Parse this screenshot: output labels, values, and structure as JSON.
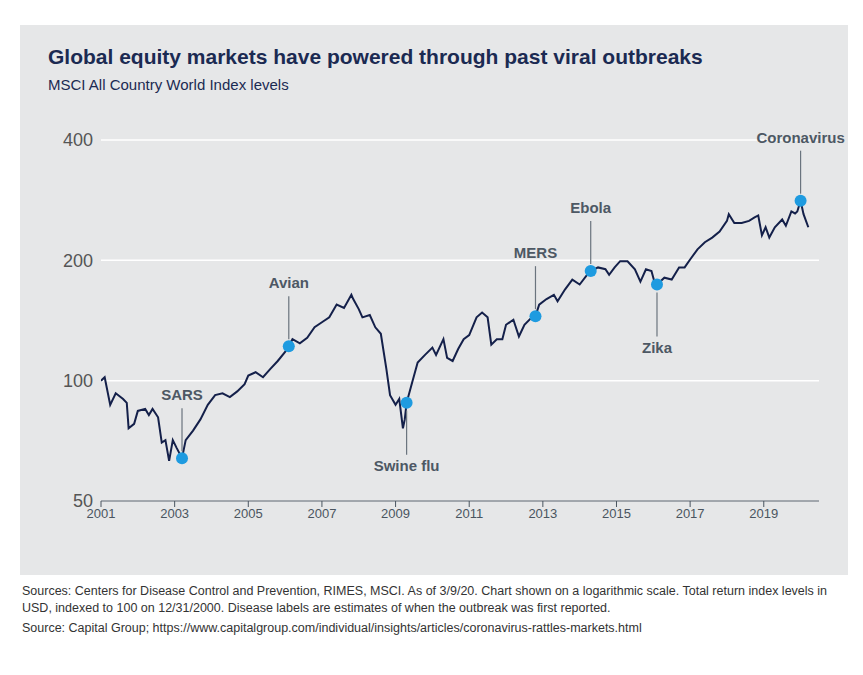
{
  "chart_data": {
    "type": "line",
    "title": "Global equity markets have powered through past viral outbreaks",
    "subtitle": "MSCI All Country World Index levels",
    "x": [
      2001.0,
      2001.1,
      2001.25,
      2001.4,
      2001.6,
      2001.7,
      2001.75,
      2001.9,
      2002.0,
      2002.2,
      2002.3,
      2002.4,
      2002.55,
      2002.65,
      2002.75,
      2002.85,
      2002.95,
      2003.05,
      2003.2,
      2003.3,
      2003.5,
      2003.7,
      2003.9,
      2004.1,
      2004.3,
      2004.5,
      2004.7,
      2004.9,
      2005.0,
      2005.2,
      2005.4,
      2005.6,
      2005.8,
      2006.0,
      2006.1,
      2006.2,
      2006.4,
      2006.6,
      2006.8,
      2007.0,
      2007.2,
      2007.4,
      2007.6,
      2007.8,
      2007.85,
      2008.0,
      2008.1,
      2008.3,
      2008.45,
      2008.6,
      2008.75,
      2008.85,
      2009.0,
      2009.1,
      2009.2,
      2009.25,
      2009.3,
      2009.45,
      2009.6,
      2009.8,
      2010.0,
      2010.1,
      2010.3,
      2010.4,
      2010.55,
      2010.7,
      2010.85,
      2011.0,
      2011.2,
      2011.35,
      2011.5,
      2011.6,
      2011.75,
      2011.9,
      2012.0,
      2012.2,
      2012.35,
      2012.5,
      2012.7,
      2012.8,
      2012.9,
      2013.1,
      2013.3,
      2013.4,
      2013.6,
      2013.8,
      2014.0,
      2014.2,
      2014.3,
      2014.5,
      2014.7,
      2014.8,
      2014.95,
      2015.1,
      2015.3,
      2015.5,
      2015.65,
      2015.8,
      2015.95,
      2016.05,
      2016.1,
      2016.3,
      2016.5,
      2016.7,
      2016.85,
      2017.0,
      2017.2,
      2017.4,
      2017.6,
      2017.8,
      2018.0,
      2018.05,
      2018.2,
      2018.4,
      2018.6,
      2018.75,
      2018.85,
      2018.95,
      2019.05,
      2019.15,
      2019.3,
      2019.5,
      2019.6,
      2019.75,
      2019.85,
      2019.91,
      2020.0,
      2020.08,
      2020.21
    ],
    "values": [
      100,
      102,
      87,
      93,
      90,
      88,
      76,
      78,
      84,
      85,
      82,
      85,
      81,
      70,
      71,
      63,
      71,
      68,
      64,
      71,
      75,
      80,
      87,
      92,
      93,
      91,
      94,
      98,
      103,
      105,
      102,
      107,
      112,
      118,
      122,
      127,
      124,
      128,
      136,
      140,
      144,
      155,
      152,
      164,
      160,
      151,
      144,
      146,
      136,
      131,
      107,
      92,
      87,
      90,
      76,
      80,
      88,
      99,
      111,
      116,
      121,
      116,
      127,
      114,
      112,
      120,
      127,
      130,
      144,
      148,
      144,
      123,
      127,
      127,
      138,
      142,
      129,
      138,
      144,
      145,
      155,
      160,
      164,
      158,
      169,
      179,
      174,
      184,
      188,
      192,
      190,
      184,
      192,
      199,
      199,
      190,
      177,
      190,
      188,
      174,
      174,
      181,
      179,
      192,
      192,
      201,
      213,
      222,
      228,
      236,
      251,
      261,
      248,
      248,
      251,
      256,
      259,
      231,
      242,
      228,
      242,
      253,
      244,
      265,
      262,
      265,
      282,
      261,
      242
    ],
    "color": "#14204a",
    "xlim": [
      2001,
      2020.5
    ],
    "xticks": [
      2001,
      2003,
      2005,
      2007,
      2009,
      2011,
      2013,
      2015,
      2017,
      2019
    ],
    "ylim": [
      50,
      400
    ],
    "yticks": [
      50,
      100,
      200,
      400
    ],
    "log": "y",
    "grid": true,
    "annotations": [
      {
        "label": "SARS",
        "x": 2003.2,
        "y": 64
      },
      {
        "label": "Avian",
        "x": 2006.1,
        "y": 122
      },
      {
        "label": "Swine flu",
        "x": 2009.3,
        "y": 88
      },
      {
        "label": "MERS",
        "x": 2012.8,
        "y": 145
      },
      {
        "label": "Ebola",
        "x": 2014.3,
        "y": 188
      },
      {
        "label": "Zika",
        "x": 2016.1,
        "y": 174
      },
      {
        "label": "Coronavirus",
        "x": 2020.0,
        "y": 282
      }
    ],
    "footnotes": [
      "Sources: Centers for Disease Control and Prevention, RIMES, MSCI. As of 3/9/20. Chart shown on a logarithmic scale. Total return index levels in USD, indexed to 100 on 12/31/2000. Disease labels are estimates of when the outbreak was first reported.",
      "Source: Capital Group; https://www.capitalgroup.com/individual/insights/articles/coronavirus-rattles-markets.html"
    ]
  }
}
